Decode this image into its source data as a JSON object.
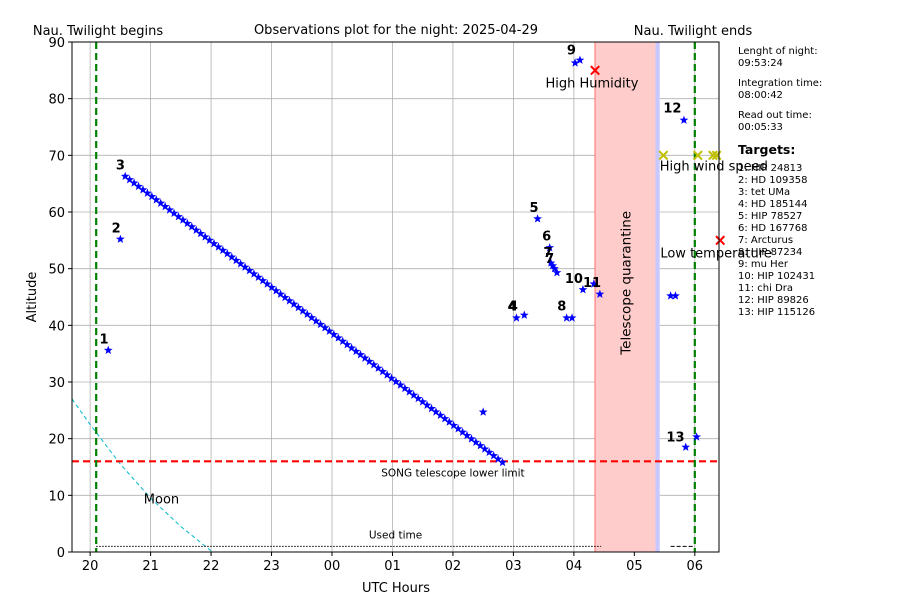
{
  "chart_data": {
    "type": "scatter",
    "title": "Observations plot for the night: 2025-04-29",
    "xlabel": "UTC Hours",
    "ylabel": "Altitude",
    "ylim": [
      0,
      90
    ],
    "xlim": [
      19.7,
      30.4
    ],
    "x_ticks": [
      {
        "v": 20,
        "label": "20"
      },
      {
        "v": 21,
        "label": "21"
      },
      {
        "v": 22,
        "label": "22"
      },
      {
        "v": 23,
        "label": "23"
      },
      {
        "v": 24,
        "label": "00"
      },
      {
        "v": 25,
        "label": "01"
      },
      {
        "v": 26,
        "label": "02"
      },
      {
        "v": 27,
        "label": "03"
      },
      {
        "v": 28,
        "label": "04"
      },
      {
        "v": 29,
        "label": "05"
      },
      {
        "v": 30,
        "label": "06"
      }
    ],
    "y_ticks": [
      0,
      10,
      20,
      30,
      40,
      50,
      60,
      70,
      80,
      90
    ],
    "grid": true,
    "twilight_begin": {
      "x": 20.1,
      "label": "Nau. Twilight begins"
    },
    "twilight_end": {
      "x": 30.0,
      "label": "Nau. Twilight ends"
    },
    "lower_limit": {
      "y": 16,
      "label": "SONG telescope lower limit"
    },
    "quarantine": {
      "x_start": 28.35,
      "x_end": 29.35,
      "label": "Telescope quarantine"
    },
    "readout_band": {
      "x_start": 29.35,
      "x_end": 29.42
    },
    "used_time": {
      "x_start": 20.1,
      "x_end": 28.45,
      "y": 1,
      "x2_start": 29.6,
      "x2_end": 30.0,
      "label": "Used time"
    },
    "moon": {
      "label": "Moon",
      "points": [
        [
          19.7,
          27
        ],
        [
          20.0,
          22.5
        ],
        [
          20.5,
          15.5
        ],
        [
          21.0,
          9.5
        ],
        [
          21.5,
          4.5
        ],
        [
          22.0,
          0.2
        ],
        [
          22.2,
          -1
        ]
      ]
    },
    "star_points": [
      [
        20.3,
        35.6
      ],
      [
        20.5,
        55.2
      ],
      [
        26.5,
        24.7
      ],
      [
        27.05,
        41.3
      ],
      [
        27.18,
        41.8
      ],
      [
        27.4,
        58.8
      ],
      [
        27.6,
        53.7
      ],
      [
        27.62,
        51.0
      ],
      [
        27.65,
        50.5
      ],
      [
        27.68,
        50.0
      ],
      [
        27.72,
        49.3
      ],
      [
        27.88,
        41.3
      ],
      [
        27.97,
        41.3
      ],
      [
        28.02,
        86.3
      ],
      [
        28.1,
        86.8
      ],
      [
        28.15,
        46.3
      ],
      [
        28.33,
        47.3
      ],
      [
        28.43,
        45.5
      ],
      [
        29.6,
        45.2
      ],
      [
        29.68,
        45.2
      ],
      [
        29.82,
        76.2
      ],
      [
        29.85,
        18.5
      ],
      [
        30.03,
        20.3
      ]
    ],
    "trail": {
      "x_start": 20.58,
      "y_start": 66.3,
      "x_end": 26.82,
      "y_end": 15.8,
      "n": 86
    },
    "target_labels": [
      {
        "text": "1",
        "x": 20.23,
        "y": 36.8
      },
      {
        "text": "2",
        "x": 20.43,
        "y": 56.4
      },
      {
        "text": "3",
        "x": 20.5,
        "y": 67.5
      },
      {
        "text": "4",
        "x": 26.98,
        "y": 42.6
      },
      {
        "text": "4",
        "x": 27.0,
        "y": 42.6
      },
      {
        "text": "5",
        "x": 27.34,
        "y": 60.0
      },
      {
        "text": "6",
        "x": 27.55,
        "y": 55.0
      },
      {
        "text": "7",
        "x": 27.57,
        "y": 52.1
      },
      {
        "text": "7",
        "x": 27.6,
        "y": 51.0
      },
      {
        "text": "8",
        "x": 27.8,
        "y": 42.6
      },
      {
        "text": "9",
        "x": 27.96,
        "y": 87.8
      },
      {
        "text": "10",
        "x": 28.0,
        "y": 47.5
      },
      {
        "text": "11",
        "x": 28.3,
        "y": 46.8
      },
      {
        "text": "12",
        "x": 29.63,
        "y": 77.6
      },
      {
        "text": "13",
        "x": 29.68,
        "y": 19.5
      }
    ],
    "red_x": [
      [
        28.35,
        85.0
      ],
      [
        30.42,
        55.0
      ]
    ],
    "yellow_x": [
      [
        29.48,
        70.0
      ],
      [
        30.05,
        70.0
      ],
      [
        30.3,
        70.0
      ],
      [
        30.36,
        70.0
      ]
    ],
    "annotations": [
      {
        "text": "High Humidity",
        "x": 27.53,
        "y": 82.0
      },
      {
        "text": "High wind speed",
        "x": 29.42,
        "y": 67.3
      },
      {
        "text": "Low temperature",
        "x": 29.43,
        "y": 52.0
      }
    ],
    "series": [
      {
        "name": "Targets",
        "color": "#0000ff",
        "marker": "star"
      },
      {
        "color": "#ff0000",
        "marker": "x"
      },
      {
        "color": "#bfbf00",
        "marker": "x"
      }
    ]
  },
  "side_panel": {
    "night_length_label": "Lenght of night:",
    "night_length_value": "09:53:24",
    "integration_label": "Integration time:",
    "integration_value": "08:00:42",
    "readout_label": "Read out time:",
    "readout_value": "00:05:33",
    "targets_title": "Targets:",
    "targets": [
      "1: HIP 24813",
      "2: HD 109358",
      "3: tet UMa",
      "4: HD 185144",
      "5: HIP 78527",
      "6: HD 167768",
      "7: Arcturus",
      "8: HIP 87234",
      "9: mu Her",
      "10: HIP 102431",
      "11: chi Dra",
      "12: HIP 89826",
      "13: HIP 115126"
    ]
  }
}
